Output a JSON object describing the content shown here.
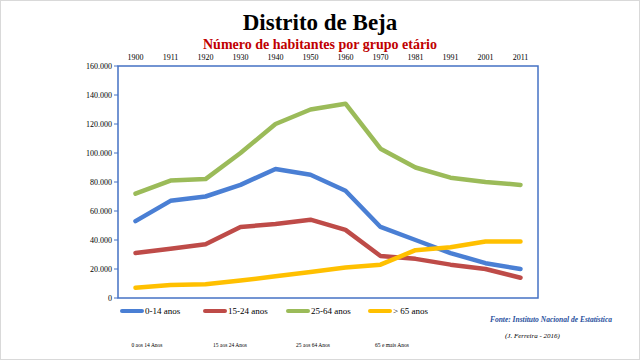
{
  "chart_data": {
    "type": "line",
    "title": "Distrito de Beja",
    "subtitle": "Número de habitantes por grupo etário",
    "categories": [
      "1900",
      "1911",
      "1920",
      "1930",
      "1940",
      "1950",
      "1960",
      "1970",
      "1981",
      "1991",
      "2001",
      "2011"
    ],
    "series": [
      {
        "name": "0-14 anos",
        "color": "#4a7fd4",
        "values": [
          53000,
          67000,
          70000,
          78000,
          89000,
          85000,
          74000,
          49000,
          40000,
          31000,
          24000,
          20000
        ]
      },
      {
        "name": "15-24 anos",
        "color": "#be4b48",
        "values": [
          31000,
          34000,
          37000,
          49000,
          51000,
          54000,
          47000,
          29000,
          27000,
          23000,
          20000,
          14000
        ]
      },
      {
        "name": "25-64 anos",
        "color": "#9bbb59",
        "values": [
          72000,
          81000,
          82000,
          100000,
          120000,
          130000,
          134000,
          103000,
          90000,
          83000,
          80000,
          78000
        ]
      },
      {
        "name": "> 65 anos",
        "color": "#ffc000",
        "values": [
          7000,
          9000,
          9500,
          12000,
          15000,
          18000,
          21000,
          23000,
          33000,
          35000,
          39000,
          39000
        ]
      }
    ],
    "ylim": [
      0,
      160000
    ],
    "yticks": [
      0,
      {
        "value": 20000,
        "label": "20.000"
      },
      {
        "value": 40000,
        "label": "40.000"
      },
      {
        "value": 60000,
        "label": "60.000"
      },
      {
        "value": 80000,
        "label": "80.000"
      },
      {
        "value": 100000,
        "label": "100.000"
      },
      {
        "value": 120000,
        "label": "120.000"
      },
      {
        "value": 140000,
        "label": "140.000"
      },
      {
        "value": 160000,
        "label": "160.000"
      }
    ],
    "grid": false,
    "legend": "bottom",
    "annotations": [
      "0 aos 14 Anos",
      "15 aos 24 Anos",
      "25 aos 64 Anos",
      "65 e mais Anos",
      "Fonte: Instituto Nacional de Estatística",
      "(J. Ferreira - 2016)"
    ]
  }
}
